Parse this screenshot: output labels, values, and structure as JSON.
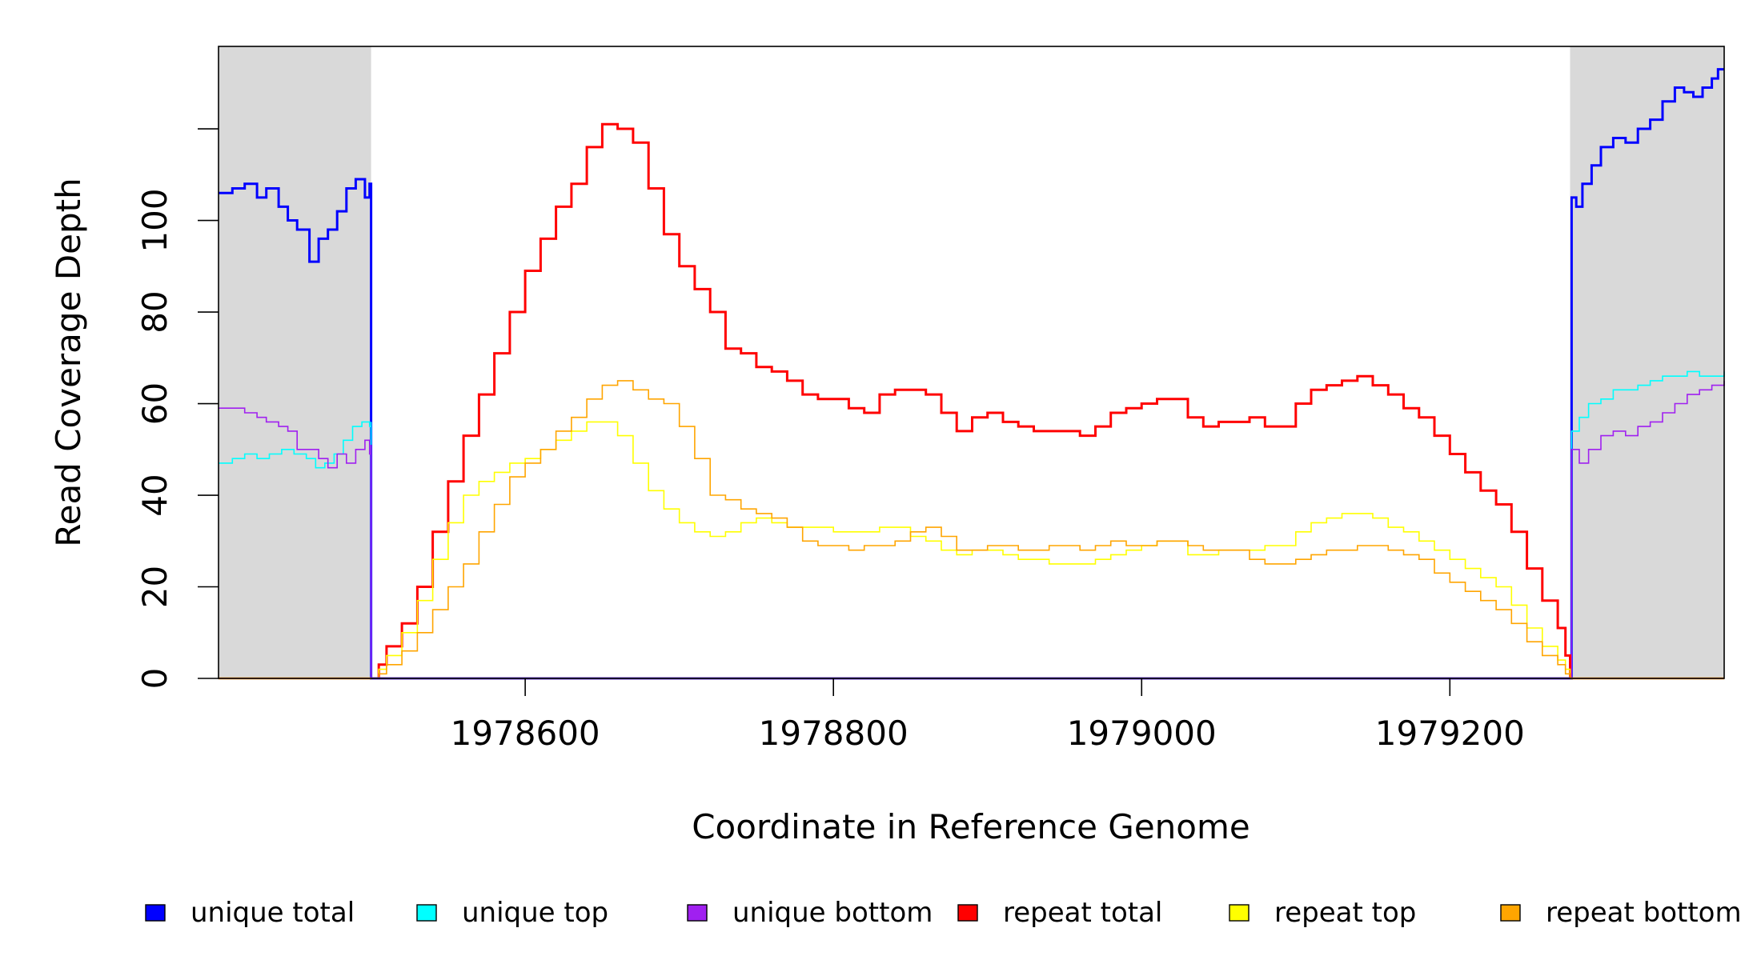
{
  "chart_data": {
    "type": "line",
    "title": "",
    "xlabel": "Coordinate in Reference Genome",
    "ylabel": "Read Coverage Depth",
    "xlim": [
      1978401,
      1979378
    ],
    "ylim": [
      0,
      138
    ],
    "x_ticks": [
      1978600,
      1978800,
      1979000,
      1979200
    ],
    "x_tick_labels": [
      "1978600",
      "1978800",
      "1979000",
      "1979200"
    ],
    "y_ticks": [
      0,
      20,
      40,
      60,
      80,
      100,
      120
    ],
    "y_tick_labels": [
      "0",
      "20",
      "40",
      "60",
      "80",
      "100",
      ""
    ],
    "repeat_region": [
      1978500,
      1979278
    ],
    "shaded_regions": [
      [
        1978401,
        1978500
      ],
      [
        1979278,
        1979378
      ]
    ],
    "grid": false,
    "legend_position": "bottom",
    "series": [
      {
        "name": "unique total",
        "color": "#0000ff",
        "x": [
          1978401,
          1978410,
          1978418,
          1978426,
          1978432,
          1978440,
          1978446,
          1978452,
          1978460,
          1978466,
          1978472,
          1978478,
          1978484,
          1978490,
          1978496,
          1978499,
          1978500,
          1978500,
          1979278,
          1979279,
          1979282,
          1979286,
          1979292,
          1979298,
          1979306,
          1979314,
          1979322,
          1979330,
          1979338,
          1979346,
          1979352,
          1979358,
          1979364,
          1979370,
          1979374,
          1979378
        ],
        "y": [
          106,
          107,
          108,
          105,
          107,
          103,
          100,
          98,
          91,
          96,
          98,
          102,
          107,
          109,
          105,
          108,
          107,
          0,
          0,
          105,
          103,
          108,
          112,
          116,
          118,
          117,
          120,
          122,
          126,
          129,
          128,
          127,
          129,
          131,
          133,
          133
        ]
      },
      {
        "name": "unique top",
        "color": "#00ffff",
        "x": [
          1978401,
          1978410,
          1978418,
          1978426,
          1978434,
          1978442,
          1978450,
          1978458,
          1978464,
          1978470,
          1978476,
          1978482,
          1978488,
          1978494,
          1978499,
          1978500,
          1978500,
          1979278,
          1979279,
          1979284,
          1979290,
          1979298,
          1979306,
          1979314,
          1979322,
          1979330,
          1979338,
          1979346,
          1979354,
          1979362,
          1979370,
          1979378
        ],
        "y": [
          47,
          48,
          49,
          48,
          49,
          50,
          49,
          48,
          46,
          47,
          49,
          52,
          55,
          56,
          55,
          56,
          0,
          0,
          54,
          57,
          60,
          61,
          63,
          63,
          64,
          65,
          66,
          66,
          67,
          66,
          66,
          67
        ]
      },
      {
        "name": "unique bottom",
        "color": "#a020f0",
        "x": [
          1978401,
          1978410,
          1978418,
          1978426,
          1978432,
          1978440,
          1978446,
          1978452,
          1978460,
          1978466,
          1978472,
          1978478,
          1978484,
          1978490,
          1978496,
          1978499,
          1978500,
          1978500,
          1979278,
          1979279,
          1979284,
          1979290,
          1979298,
          1979306,
          1979314,
          1979322,
          1979330,
          1979338,
          1979346,
          1979354,
          1979362,
          1979370,
          1979378
        ],
        "y": [
          59,
          59,
          58,
          57,
          56,
          55,
          54,
          50,
          50,
          48,
          46,
          49,
          47,
          50,
          52,
          49,
          51,
          0,
          0,
          50,
          47,
          50,
          53,
          54,
          53,
          55,
          56,
          58,
          60,
          62,
          63,
          64,
          65
        ]
      },
      {
        "name": "repeat total",
        "color": "#ff0000",
        "x": [
          1978500,
          1978505,
          1978510,
          1978520,
          1978530,
          1978540,
          1978550,
          1978560,
          1978570,
          1978580,
          1978590,
          1978600,
          1978610,
          1978620,
          1978630,
          1978640,
          1978650,
          1978660,
          1978670,
          1978680,
          1978690,
          1978700,
          1978710,
          1978720,
          1978730,
          1978740,
          1978750,
          1978760,
          1978770,
          1978780,
          1978790,
          1978800,
          1978810,
          1978820,
          1978830,
          1978840,
          1978850,
          1978860,
          1978870,
          1978880,
          1978890,
          1978900,
          1978910,
          1978920,
          1978930,
          1978940,
          1978950,
          1978960,
          1978970,
          1978980,
          1978990,
          1979000,
          1979010,
          1979020,
          1979030,
          1979040,
          1979050,
          1979060,
          1979070,
          1979080,
          1979090,
          1979100,
          1979110,
          1979120,
          1979130,
          1979140,
          1979150,
          1979160,
          1979170,
          1979180,
          1979190,
          1979200,
          1979210,
          1979220,
          1979230,
          1979240,
          1979250,
          1979260,
          1979270,
          1979275,
          1979278
        ],
        "y": [
          0,
          3,
          7,
          12,
          20,
          32,
          43,
          53,
          62,
          71,
          80,
          89,
          96,
          103,
          108,
          116,
          121,
          120,
          117,
          107,
          97,
          90,
          85,
          80,
          72,
          71,
          68,
          67,
          65,
          62,
          61,
          61,
          59,
          58,
          62,
          63,
          63,
          62,
          58,
          54,
          57,
          58,
          56,
          55,
          54,
          54,
          54,
          53,
          55,
          58,
          59,
          60,
          61,
          61,
          57,
          55,
          56,
          56,
          57,
          55,
          55,
          60,
          63,
          64,
          65,
          66,
          64,
          62,
          59,
          57,
          53,
          49,
          45,
          41,
          38,
          32,
          24,
          17,
          11,
          5,
          0
        ]
      },
      {
        "name": "repeat top",
        "color": "#ffff00",
        "x": [
          1978500,
          1978505,
          1978510,
          1978520,
          1978530,
          1978540,
          1978550,
          1978560,
          1978570,
          1978580,
          1978590,
          1978600,
          1978610,
          1978620,
          1978630,
          1978640,
          1978650,
          1978660,
          1978670,
          1978680,
          1978690,
          1978700,
          1978710,
          1978720,
          1978730,
          1978740,
          1978750,
          1978760,
          1978770,
          1978780,
          1978790,
          1978800,
          1978810,
          1978820,
          1978830,
          1978840,
          1978850,
          1978860,
          1978870,
          1978880,
          1978890,
          1978900,
          1978910,
          1978920,
          1978930,
          1978940,
          1978950,
          1978960,
          1978970,
          1978980,
          1978990,
          1979000,
          1979010,
          1979020,
          1979030,
          1979040,
          1979050,
          1979060,
          1979070,
          1979080,
          1979090,
          1979100,
          1979110,
          1979120,
          1979130,
          1979140,
          1979150,
          1979160,
          1979170,
          1979180,
          1979190,
          1979200,
          1979210,
          1979220,
          1979230,
          1979240,
          1979250,
          1979260,
          1979270,
          1979275,
          1979278
        ],
        "y": [
          0,
          2,
          5,
          10,
          17,
          26,
          34,
          40,
          43,
          45,
          47,
          48,
          50,
          52,
          54,
          56,
          56,
          53,
          47,
          41,
          37,
          34,
          32,
          31,
          32,
          34,
          35,
          34,
          33,
          33,
          33,
          32,
          32,
          32,
          33,
          33,
          31,
          30,
          28,
          27,
          28,
          28,
          27,
          26,
          26,
          25,
          25,
          25,
          26,
          27,
          28,
          29,
          30,
          30,
          27,
          27,
          28,
          28,
          28,
          29,
          29,
          32,
          34,
          35,
          36,
          36,
          35,
          33,
          32,
          30,
          28,
          26,
          24,
          22,
          20,
          16,
          11,
          7,
          4,
          2,
          0
        ]
      },
      {
        "name": "repeat bottom",
        "color": "#ffa500",
        "x": [
          1978500,
          1978505,
          1978510,
          1978520,
          1978530,
          1978540,
          1978550,
          1978560,
          1978570,
          1978580,
          1978590,
          1978600,
          1978610,
          1978620,
          1978630,
          1978640,
          1978650,
          1978660,
          1978670,
          1978680,
          1978690,
          1978700,
          1978710,
          1978720,
          1978730,
          1978740,
          1978750,
          1978760,
          1978770,
          1978780,
          1978790,
          1978800,
          1978810,
          1978820,
          1978830,
          1978840,
          1978850,
          1978860,
          1978870,
          1978880,
          1978890,
          1978900,
          1978910,
          1978920,
          1978930,
          1978940,
          1978950,
          1978960,
          1978970,
          1978980,
          1978990,
          1979000,
          1979010,
          1979020,
          1979030,
          1979040,
          1979050,
          1979060,
          1979070,
          1979080,
          1979090,
          1979100,
          1979110,
          1979120,
          1979130,
          1979140,
          1979150,
          1979160,
          1979170,
          1979180,
          1979190,
          1979200,
          1979210,
          1979220,
          1979230,
          1979240,
          1979250,
          1979260,
          1979270,
          1979275,
          1979278
        ],
        "y": [
          0,
          1,
          3,
          6,
          10,
          15,
          20,
          25,
          32,
          38,
          44,
          47,
          50,
          54,
          57,
          61,
          64,
          65,
          63,
          61,
          60,
          55,
          48,
          40,
          39,
          37,
          36,
          35,
          33,
          30,
          29,
          29,
          28,
          29,
          29,
          30,
          32,
          33,
          31,
          28,
          28,
          29,
          29,
          28,
          28,
          29,
          29,
          28,
          29,
          30,
          29,
          29,
          30,
          30,
          29,
          28,
          28,
          28,
          26,
          25,
          25,
          26,
          27,
          28,
          28,
          29,
          29,
          28,
          27,
          26,
          23,
          21,
          19,
          17,
          15,
          12,
          8,
          5,
          3,
          1,
          0
        ]
      }
    ]
  }
}
